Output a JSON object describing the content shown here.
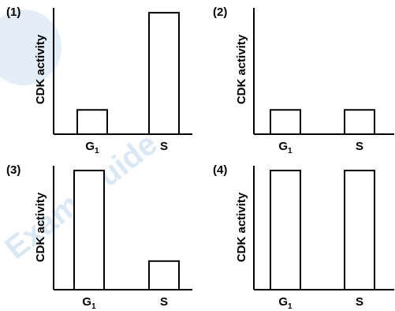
{
  "watermark": {
    "text": "Exam Guide",
    "color": "#d6e6f5"
  },
  "chart_data": [
    {
      "type": "bar",
      "panel_label": "(1)",
      "categories": [
        "G₁",
        "S"
      ],
      "values": [
        1,
        5
      ],
      "ylabel": "CDK activity",
      "ylim": [
        0,
        5.2
      ],
      "grid": false,
      "bar_fill": "#ffffff",
      "bar_stroke": "#000000"
    },
    {
      "type": "bar",
      "panel_label": "(2)",
      "categories": [
        "G₁",
        "S"
      ],
      "values": [
        1,
        1
      ],
      "ylabel": "CDK activity",
      "ylim": [
        0,
        5.2
      ],
      "grid": false,
      "bar_fill": "#ffffff",
      "bar_stroke": "#000000"
    },
    {
      "type": "bar",
      "panel_label": "(3)",
      "categories": [
        "G₁",
        "S"
      ],
      "values": [
        5,
        1.2
      ],
      "ylabel": "CDK activity",
      "ylim": [
        0,
        5.2
      ],
      "grid": false,
      "bar_fill": "#ffffff",
      "bar_stroke": "#000000"
    },
    {
      "type": "bar",
      "panel_label": "(4)",
      "categories": [
        "G₁",
        "S"
      ],
      "values": [
        5,
        5
      ],
      "ylabel": "CDK activity",
      "ylim": [
        0,
        5.2
      ],
      "grid": false,
      "bar_fill": "#ffffff",
      "bar_stroke": "#000000"
    }
  ]
}
